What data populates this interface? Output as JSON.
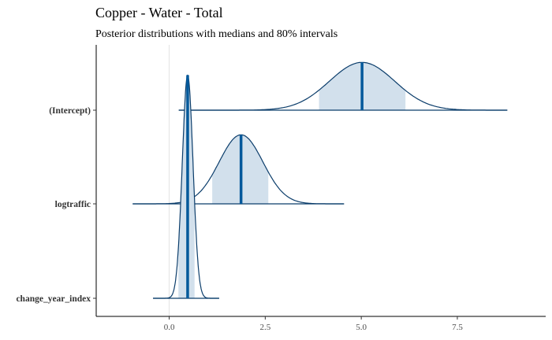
{
  "chart_data": {
    "type": "area",
    "title": "Copper - Water - Total",
    "subtitle": "Posterior distributions with medians and 80% intervals",
    "xlabel": "",
    "ylabel": "",
    "xlim": [
      -1.9,
      9.8
    ],
    "x_ticks": [
      0.0,
      2.5,
      5.0,
      7.5
    ],
    "x_tick_labels": [
      "0.0",
      "2.5",
      "5.0",
      "7.5"
    ],
    "zero_reference_line": 0,
    "grid": false,
    "colors": {
      "outline": "#0b3d6b",
      "median": "#03599b",
      "interval_fill": "#d2e0ec"
    },
    "series": [
      {
        "name": "(Intercept)",
        "median": 5.02,
        "interval_80": [
          3.9,
          6.15
        ],
        "sd": 0.85,
        "range": [
          0.25,
          8.8
        ],
        "density_height": 0.45
      },
      {
        "name": "logtraffic",
        "median": 1.87,
        "interval_80": [
          1.12,
          2.58
        ],
        "sd": 0.57,
        "range": [
          -0.95,
          4.55
        ],
        "density_height": 0.65
      },
      {
        "name": "change_year_index",
        "median": 0.48,
        "interval_80": [
          0.24,
          0.66
        ],
        "sd": 0.14,
        "range": [
          -0.42,
          1.3
        ],
        "density_height": 2.1
      }
    ]
  }
}
